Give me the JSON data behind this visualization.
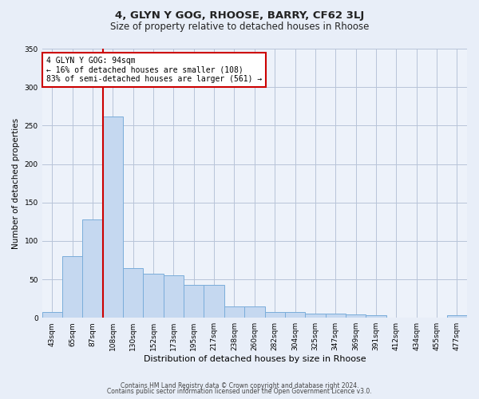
{
  "title1": "4, GLYN Y GOG, RHOOSE, BARRY, CF62 3LJ",
  "title2": "Size of property relative to detached houses in Rhoose",
  "xlabel": "Distribution of detached houses by size in Rhoose",
  "ylabel": "Number of detached properties",
  "bar_values": [
    7,
    80,
    128,
    262,
    65,
    57,
    55,
    43,
    43,
    15,
    15,
    8,
    7,
    5,
    5,
    4,
    3,
    0,
    0,
    0,
    3
  ],
  "bar_labels": [
    "43sqm",
    "65sqm",
    "87sqm",
    "108sqm",
    "130sqm",
    "152sqm",
    "173sqm",
    "195sqm",
    "217sqm",
    "238sqm",
    "260sqm",
    "282sqm",
    "304sqm",
    "325sqm",
    "347sqm",
    "369sqm",
    "391sqm",
    "412sqm",
    "434sqm",
    "455sqm",
    "477sqm"
  ],
  "bar_color": "#c5d8f0",
  "bar_edgecolor": "#7aadda",
  "bg_color": "#e8eef8",
  "plot_bg_color": "#edf2fa",
  "grid_color": "#b8c4d8",
  "annotation_text": "4 GLYN Y GOG: 94sqm\n← 16% of detached houses are smaller (108)\n83% of semi-detached houses are larger (561) →",
  "annotation_box_color": "#ffffff",
  "annotation_box_edgecolor": "#cc0000",
  "red_line_color": "#cc0000",
  "footer1": "Contains HM Land Registry data © Crown copyright and database right 2024.",
  "footer2": "Contains public sector information licensed under the Open Government Licence v3.0.",
  "ylim": [
    0,
    350
  ],
  "yticks": [
    0,
    50,
    100,
    150,
    200,
    250,
    300,
    350
  ],
  "title1_fontsize": 9.5,
  "title2_fontsize": 8.5,
  "xlabel_fontsize": 8,
  "ylabel_fontsize": 7.5,
  "tick_fontsize": 6.5,
  "footer_fontsize": 5.5
}
